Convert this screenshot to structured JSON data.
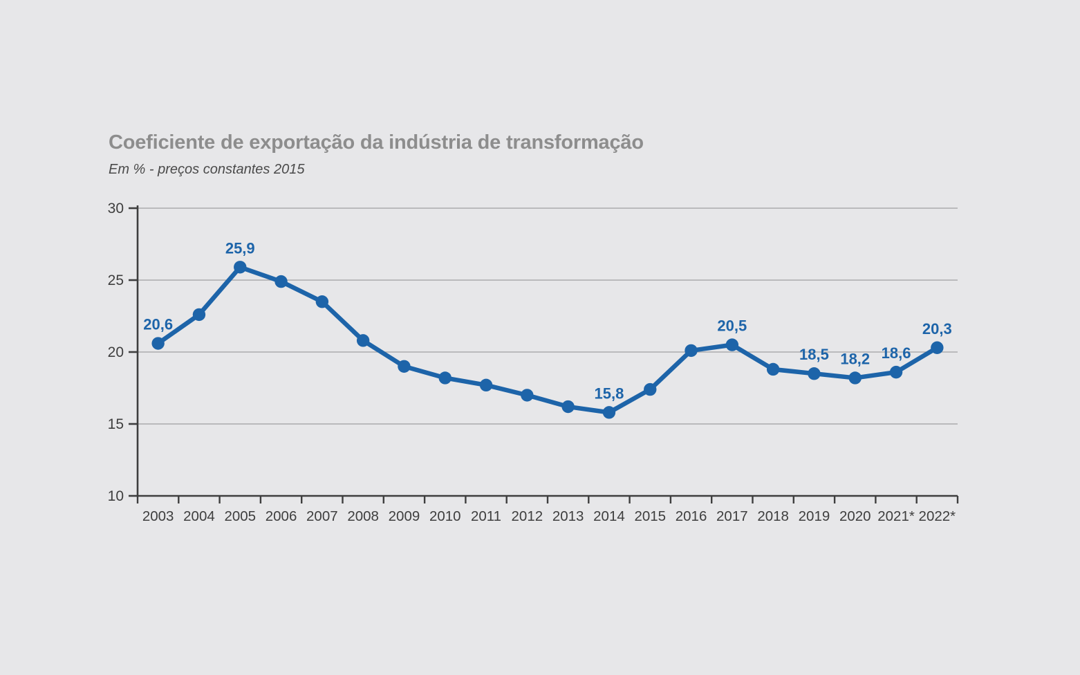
{
  "page": {
    "background": "#e7e7e9"
  },
  "chart_data": {
    "type": "line",
    "title": "Coeficiente de exportação da indústria de transformação",
    "subtitle": "Em % - preços constantes 2015",
    "categories": [
      "2003",
      "2004",
      "2005",
      "2006",
      "2007",
      "2008",
      "2009",
      "2010",
      "2011",
      "2012",
      "2013",
      "2014",
      "2015",
      "2016",
      "2017",
      "2018",
      "2019",
      "2020",
      "2021*",
      "2022*"
    ],
    "series": [
      {
        "name": "Coeficiente de exportação",
        "values": [
          20.6,
          22.6,
          25.9,
          24.9,
          23.5,
          20.8,
          19.0,
          18.2,
          17.7,
          17.0,
          16.2,
          15.8,
          17.4,
          20.1,
          20.5,
          18.8,
          18.5,
          18.2,
          18.6,
          20.3
        ],
        "point_labels": [
          "20,6",
          null,
          "25,9",
          null,
          null,
          null,
          null,
          null,
          null,
          null,
          null,
          "15,8",
          null,
          null,
          "20,5",
          null,
          "18,5",
          "18,2",
          "18,6",
          "20,3"
        ]
      }
    ],
    "xlabel": "",
    "ylabel": "",
    "ylim": [
      10,
      30
    ],
    "yticks": [
      10,
      15,
      20,
      25,
      30
    ],
    "grid": true,
    "legend": "none",
    "colors": {
      "line": "#1d64a9",
      "point_label": "#1d64a9",
      "title": "#8d8d8d",
      "subtitle": "#4a4a4a",
      "axis": "#3e3e3e",
      "tick_label": "#3e3e3e",
      "gridline": "#ababad",
      "background": "#e7e7e9"
    }
  }
}
